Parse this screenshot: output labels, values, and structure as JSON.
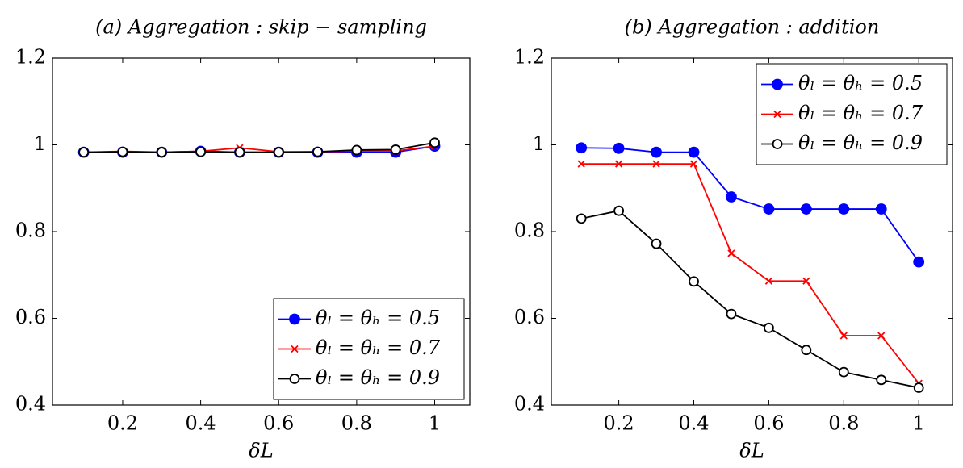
{
  "chart_data": [
    {
      "type": "line",
      "title": "(a) Aggregation : skip − sampling",
      "xlabel": "δL",
      "x": [
        0.1,
        0.2,
        0.3,
        0.4,
        0.5,
        0.6,
        0.7,
        0.8,
        0.9,
        1
      ],
      "xlim": [
        0.02,
        1.09
      ],
      "xticks": [
        0.2,
        0.4,
        0.6,
        0.8,
        1
      ],
      "ylim": [
        0.4,
        1.2
      ],
      "yticks": [
        0.4,
        0.6,
        0.8,
        1,
        1.2
      ],
      "legend": "lower right",
      "series": [
        {
          "name": "θₗ = θₕ = 0.5",
          "color": "#0000ff",
          "marker": "filled-circle",
          "values": [
            0.983,
            0.983,
            0.983,
            0.985,
            0.983,
            0.983,
            0.983,
            0.983,
            0.983,
            0.997
          ]
        },
        {
          "name": "θₗ = θₕ = 0.7",
          "color": "#ff0000",
          "marker": "cross",
          "values": [
            0.983,
            0.985,
            0.983,
            0.985,
            0.993,
            0.984,
            0.984,
            0.986,
            0.986,
            0.997
          ]
        },
        {
          "name": "θₗ = θₕ = 0.9",
          "color": "#000000",
          "marker": "open-circle",
          "values": [
            0.983,
            0.984,
            0.983,
            0.984,
            0.983,
            0.983,
            0.984,
            0.988,
            0.989,
            1.005
          ]
        }
      ]
    },
    {
      "type": "line",
      "title": "(b) Aggregation : addition",
      "xlabel": "δL",
      "x": [
        0.1,
        0.2,
        0.3,
        0.4,
        0.5,
        0.6,
        0.7,
        0.8,
        0.9,
        1
      ],
      "xlim": [
        0.02,
        1.09
      ],
      "xticks": [
        0.2,
        0.4,
        0.6,
        0.8,
        1
      ],
      "ylim": [
        0.4,
        1.2
      ],
      "yticks": [
        0.4,
        0.6,
        0.8,
        1,
        1.2
      ],
      "legend": "upper right",
      "series": [
        {
          "name": "θₗ = θₕ = 0.5",
          "color": "#0000ff",
          "marker": "filled-circle",
          "values": [
            0.993,
            0.992,
            0.983,
            0.983,
            0.88,
            0.852,
            0.852,
            0.852,
            0.852,
            0.73
          ]
        },
        {
          "name": "θₗ = θₕ = 0.7",
          "color": "#ff0000",
          "marker": "cross",
          "values": [
            0.956,
            0.956,
            0.956,
            0.956,
            0.75,
            0.686,
            0.686,
            0.56,
            0.56,
            0.45
          ]
        },
        {
          "name": "θₗ = θₕ = 0.9",
          "color": "#000000",
          "marker": "open-circle",
          "values": [
            0.83,
            0.848,
            0.772,
            0.685,
            0.61,
            0.578,
            0.527,
            0.476,
            0.458,
            0.44
          ]
        }
      ]
    }
  ]
}
